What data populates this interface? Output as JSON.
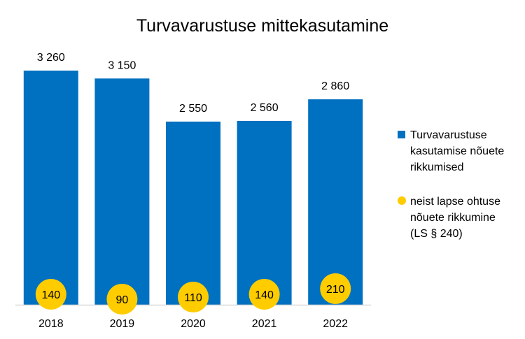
{
  "chart_data": {
    "type": "bar",
    "title": "Turvavarustuse mittekasutamine",
    "categories": [
      "2018",
      "2019",
      "2020",
      "2021",
      "2022"
    ],
    "series": [
      {
        "name": "Turvavarustuse kasutamise nõuete rikkumised",
        "kind": "bar",
        "color": "#0070C0",
        "values": [
          3260,
          3150,
          2550,
          2560,
          2860
        ],
        "labels": [
          "3 260",
          "3 150",
          "2 550",
          "2 560",
          "2 860"
        ]
      },
      {
        "name": "neist lapse ohtuse nõuete rikkumine (LS § 240)",
        "kind": "marker",
        "color": "#FFCC00",
        "values": [
          140,
          90,
          110,
          140,
          210
        ],
        "labels": [
          "140",
          "90",
          "110",
          "140",
          "210"
        ]
      }
    ],
    "legend": {
      "position": "right",
      "items": [
        [
          "Turvavarustuse",
          "kasutamise nõuete",
          "rikkumised"
        ],
        [
          "neist lapse ohtuse",
          "nõuete rikkumine",
          "(LS § 240)"
        ]
      ]
    },
    "xlabel": "",
    "ylabel": "",
    "ylim": [
      0,
      3260
    ],
    "grid": false
  }
}
